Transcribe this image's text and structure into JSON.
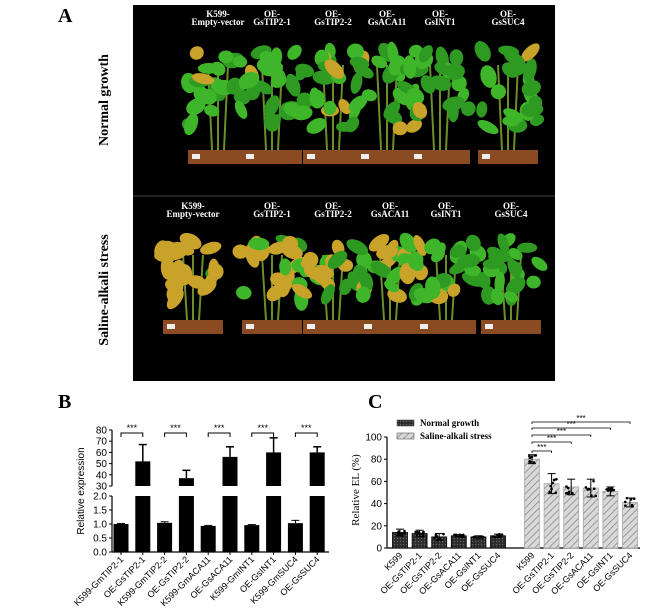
{
  "panel_a": {
    "letter": "A",
    "row_labels": [
      "Normal growth",
      "Saline-alkali stress"
    ],
    "top_labels": [
      [
        "K599-",
        "Empty-vector"
      ],
      [
        "OE-",
        "GsTIP2-1"
      ],
      [
        "OE-",
        "GsTIP2-2"
      ],
      [
        "OE-",
        "GsACA11"
      ],
      [
        "OE-",
        "GsINT1"
      ],
      [
        "OE-",
        "GsSUC4"
      ]
    ],
    "bottom_labels": [
      [
        "K599-",
        "Empty-vector"
      ],
      [
        "OE-",
        "GsTIP2-1"
      ],
      [
        "OE-",
        "GsTIP2-2"
      ],
      [
        "OE-",
        "GsACA11"
      ],
      [
        "OE-",
        "GsINT1"
      ],
      [
        "OE-",
        "GsSUC4"
      ]
    ],
    "colors": {
      "background": "#000000",
      "healthy_leaf": "#3fb52a",
      "stressed_leaf": "#c9a22a",
      "soil": "#8a4a22"
    }
  },
  "chart_data": [
    {
      "letter": "B",
      "type": "bar",
      "ylabel": "Relative expression",
      "y_axis_break": true,
      "ylim_lower": [
        0,
        2.0
      ],
      "ylim_upper": [
        30,
        80
      ],
      "yticks_lower": [
        "0.0",
        "0.5",
        "1.0",
        "1.5",
        "2.0"
      ],
      "yticks_upper": [
        "30",
        "40",
        "50",
        "60",
        "70",
        "80"
      ],
      "categories": [
        "K599-GmTIP2-1",
        "OE-GsTIP2-1",
        "K599-GmTIP2-2",
        "OE-GsTIP2-2",
        "K599-GmACA11",
        "OE-GsACA11",
        "K599-GmINT1",
        "OE-GsINT1",
        "K599-GmSUC4",
        "OE-GsSUC4"
      ],
      "values": [
        1.0,
        52,
        1.04,
        37,
        0.93,
        56,
        0.96,
        60,
        1.03,
        60
      ],
      "errors": [
        0.02,
        15,
        0.04,
        7,
        0.02,
        9,
        0.02,
        13,
        0.1,
        5
      ],
      "significance": [
        {
          "pair": [
            0,
            1
          ],
          "label": "***"
        },
        {
          "pair": [
            2,
            3
          ],
          "label": "***"
        },
        {
          "pair": [
            4,
            5
          ],
          "label": "***"
        },
        {
          "pair": [
            6,
            7
          ],
          "label": "***"
        },
        {
          "pair": [
            8,
            9
          ],
          "label": "***"
        }
      ],
      "bar_color": "#000000"
    },
    {
      "letter": "C",
      "type": "bar",
      "ylabel": "Relative EL (%)",
      "ylim": [
        0,
        100
      ],
      "yticks": [
        "0",
        "20",
        "40",
        "60",
        "80",
        "100"
      ],
      "legend": {
        "position": "top-left"
      },
      "series": [
        {
          "name": "Normal growth",
          "color": "#333333",
          "pattern": "dark",
          "categories": [
            "K599",
            "OE-GsTIP2-1",
            "OE-GsTIP2-2",
            "OE-GsACA11",
            "OE-GsINT1",
            "OE-GsSUC4"
          ],
          "values": [
            14,
            13,
            10,
            11,
            10,
            11
          ],
          "errors": [
            3,
            3,
            3,
            1,
            1,
            1.5
          ]
        },
        {
          "name": "Saline-alkali stress",
          "color": "#cccccc",
          "pattern": "hatched",
          "categories": [
            "K599",
            "OE-GsTIP2-1",
            "OE-GsTIP2-2",
            "OE-GsACA11",
            "OE-GsINT1",
            "OE-GsSUC4"
          ],
          "values": [
            80,
            58,
            55,
            54,
            51,
            41
          ],
          "errors": [
            4,
            9,
            7,
            8,
            4,
            4
          ]
        }
      ],
      "significance": [
        {
          "pair": [
            0,
            1
          ],
          "label": "***"
        },
        {
          "pair": [
            0,
            2
          ],
          "label": "***"
        },
        {
          "pair": [
            0,
            3
          ],
          "label": "***"
        },
        {
          "pair": [
            0,
            4
          ],
          "label": "***"
        },
        {
          "pair": [
            0,
            5
          ],
          "label": "***"
        }
      ]
    }
  ]
}
